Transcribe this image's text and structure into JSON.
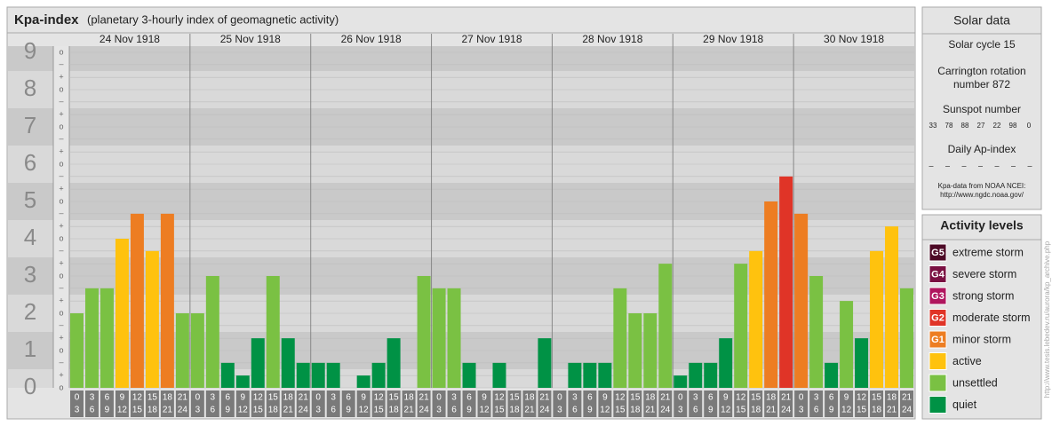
{
  "chart_data": {
    "type": "bar",
    "title": "Kpa-index",
    "subtitle": "(planetary 3-hourly index of geomagnetic activity)",
    "ylim": [
      0,
      9
    ],
    "yticks": [
      0,
      1,
      2,
      3,
      4,
      5,
      6,
      7,
      8,
      9
    ],
    "minor_ticks": [
      {
        "value": 0,
        "label": "o"
      },
      {
        "value": 0.33,
        "label": "+"
      },
      {
        "value": 0.67,
        "label": "–"
      },
      {
        "value": 1,
        "label": "o"
      },
      {
        "value": 1.33,
        "label": "+"
      },
      {
        "value": 1.67,
        "label": "–"
      },
      {
        "value": 2,
        "label": "o"
      },
      {
        "value": 2.33,
        "label": "+"
      },
      {
        "value": 2.67,
        "label": "–"
      },
      {
        "value": 3,
        "label": "o"
      },
      {
        "value": 3.33,
        "label": "+"
      },
      {
        "value": 3.67,
        "label": "–"
      },
      {
        "value": 4,
        "label": "o"
      },
      {
        "value": 4.33,
        "label": "+"
      },
      {
        "value": 4.67,
        "label": "–"
      },
      {
        "value": 5,
        "label": "o"
      },
      {
        "value": 5.33,
        "label": "+"
      },
      {
        "value": 5.67,
        "label": "–"
      },
      {
        "value": 6,
        "label": "o"
      },
      {
        "value": 6.33,
        "label": "+"
      },
      {
        "value": 6.67,
        "label": "–"
      },
      {
        "value": 7,
        "label": "o"
      },
      {
        "value": 7.33,
        "label": "+"
      },
      {
        "value": 7.67,
        "label": "–"
      },
      {
        "value": 8,
        "label": "o"
      },
      {
        "value": 8.33,
        "label": "+"
      },
      {
        "value": 8.67,
        "label": "–"
      },
      {
        "value": 9,
        "label": "o"
      }
    ],
    "intervals": [
      {
        "from": "0",
        "to": "3"
      },
      {
        "from": "3",
        "to": "6"
      },
      {
        "from": "6",
        "to": "9"
      },
      {
        "from": "9",
        "to": "12"
      },
      {
        "from": "12",
        "to": "15"
      },
      {
        "from": "15",
        "to": "18"
      },
      {
        "from": "18",
        "to": "21"
      },
      {
        "from": "21",
        "to": "24"
      }
    ],
    "days": [
      {
        "date": "24 Nov 1918",
        "values": [
          2,
          2.67,
          2.67,
          4,
          4.67,
          3.67,
          4.67,
          2
        ],
        "colors": [
          "#7ac143",
          "#7ac143",
          "#7ac143",
          "#ffc20e",
          "#ed7d22",
          "#ffc20e",
          "#ed7d22",
          "#7ac143"
        ]
      },
      {
        "date": "25 Nov 1918",
        "values": [
          2,
          3,
          0.67,
          0.33,
          1.33,
          3,
          1.33,
          0.67
        ],
        "colors": [
          "#7ac143",
          "#7ac143",
          "#009245",
          "#009245",
          "#009245",
          "#7ac143",
          "#009245",
          "#009245"
        ]
      },
      {
        "date": "26 Nov 1918",
        "values": [
          0.67,
          0.67,
          0,
          0.33,
          0.67,
          1.33,
          0,
          3
        ],
        "colors": [
          "#009245",
          "#009245",
          "#009245",
          "#009245",
          "#009245",
          "#009245",
          "#009245",
          "#7ac143"
        ]
      },
      {
        "date": "27 Nov 1918",
        "values": [
          2.67,
          2.67,
          0.67,
          0,
          0.67,
          0,
          0,
          1.33
        ],
        "colors": [
          "#7ac143",
          "#7ac143",
          "#009245",
          "#009245",
          "#009245",
          "#009245",
          "#009245",
          "#009245"
        ]
      },
      {
        "date": "28 Nov 1918",
        "values": [
          0,
          0.67,
          0.67,
          0.67,
          2.67,
          2,
          2,
          3.33
        ],
        "colors": [
          "#009245",
          "#009245",
          "#009245",
          "#009245",
          "#7ac143",
          "#7ac143",
          "#7ac143",
          "#7ac143"
        ]
      },
      {
        "date": "29 Nov 1918",
        "values": [
          0.33,
          0.67,
          0.67,
          1.33,
          3.33,
          3.67,
          5,
          5.67
        ],
        "colors": [
          "#009245",
          "#009245",
          "#009245",
          "#009245",
          "#7ac143",
          "#ffc20e",
          "#ed7d22",
          "#e03427"
        ]
      },
      {
        "date": "30 Nov 1918",
        "values": [
          4.67,
          3,
          0.67,
          2.33,
          1.33,
          3.67,
          4.33,
          2.67
        ],
        "colors": [
          "#ed7d22",
          "#7ac143",
          "#009245",
          "#7ac143",
          "#009245",
          "#ffc20e",
          "#ffc20e",
          "#7ac143"
        ]
      }
    ]
  },
  "solar_data": {
    "title": "Solar data",
    "solar_cycle": "Solar cycle 15",
    "carrington": [
      "Carrington rotation",
      "number 872"
    ],
    "sunspot_title": "Sunspot number",
    "sunspots": [
      33,
      78,
      88,
      27,
      22,
      98,
      0
    ],
    "ap_title": "Daily Ap-index",
    "ap": [
      "–",
      "–",
      "–",
      "–",
      "–",
      "–",
      "–"
    ],
    "source": [
      "Kpa-data from NOAA NCEI:",
      "http://www.ngdc.noaa.gov/"
    ]
  },
  "activity_levels": {
    "title": "Activity levels",
    "items": [
      {
        "badge": "G5",
        "label": "extreme storm",
        "color": "#4d0a26"
      },
      {
        "badge": "G4",
        "label": "severe storm",
        "color": "#7a1042"
      },
      {
        "badge": "G3",
        "label": "strong storm",
        "color": "#b0165e"
      },
      {
        "badge": "G2",
        "label": "moderate storm",
        "color": "#e03427"
      },
      {
        "badge": "G1",
        "label": "minor storm",
        "color": "#ed7d22"
      },
      {
        "label": "active",
        "color": "#ffc20e"
      },
      {
        "label": "unsettled",
        "color": "#7ac143"
      },
      {
        "label": "quiet",
        "color": "#009245"
      }
    ]
  },
  "credit": "http://www.tesis.lebedev.ru/aurora/kp_archive.php"
}
